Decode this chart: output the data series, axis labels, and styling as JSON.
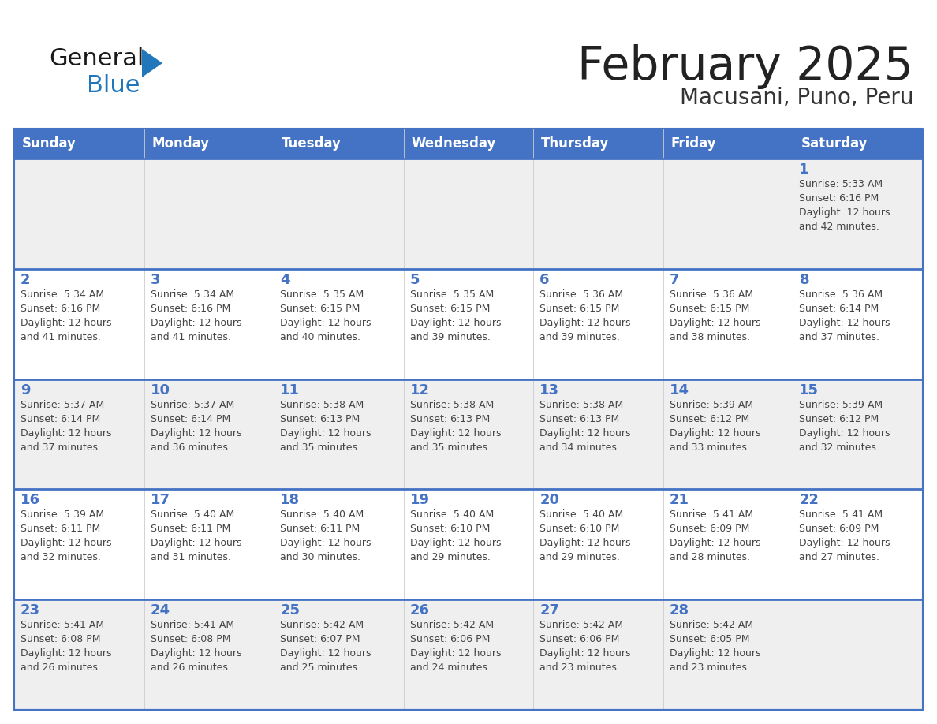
{
  "title": "February 2025",
  "subtitle": "Macusani, Puno, Peru",
  "header_bg": "#4472C4",
  "header_text_color": "#FFFFFF",
  "cell_bg_light": "#EFEFEF",
  "cell_bg_white": "#FFFFFF",
  "border_color": "#4472C4",
  "title_color": "#222222",
  "subtitle_color": "#333333",
  "day_number_color": "#4472C4",
  "info_text_color": "#444444",
  "days_of_week": [
    "Sunday",
    "Monday",
    "Tuesday",
    "Wednesday",
    "Thursday",
    "Friday",
    "Saturday"
  ],
  "logo_text1": "General",
  "logo_text2": "Blue",
  "logo_color1": "#1a1a1a",
  "logo_color2": "#2277BB",
  "logo_triangle_color": "#2277BB",
  "calendar_data": [
    [
      {
        "day": null,
        "info": ""
      },
      {
        "day": null,
        "info": ""
      },
      {
        "day": null,
        "info": ""
      },
      {
        "day": null,
        "info": ""
      },
      {
        "day": null,
        "info": ""
      },
      {
        "day": null,
        "info": ""
      },
      {
        "day": 1,
        "info": "Sunrise: 5:33 AM\nSunset: 6:16 PM\nDaylight: 12 hours\nand 42 minutes."
      }
    ],
    [
      {
        "day": 2,
        "info": "Sunrise: 5:34 AM\nSunset: 6:16 PM\nDaylight: 12 hours\nand 41 minutes."
      },
      {
        "day": 3,
        "info": "Sunrise: 5:34 AM\nSunset: 6:16 PM\nDaylight: 12 hours\nand 41 minutes."
      },
      {
        "day": 4,
        "info": "Sunrise: 5:35 AM\nSunset: 6:15 PM\nDaylight: 12 hours\nand 40 minutes."
      },
      {
        "day": 5,
        "info": "Sunrise: 5:35 AM\nSunset: 6:15 PM\nDaylight: 12 hours\nand 39 minutes."
      },
      {
        "day": 6,
        "info": "Sunrise: 5:36 AM\nSunset: 6:15 PM\nDaylight: 12 hours\nand 39 minutes."
      },
      {
        "day": 7,
        "info": "Sunrise: 5:36 AM\nSunset: 6:15 PM\nDaylight: 12 hours\nand 38 minutes."
      },
      {
        "day": 8,
        "info": "Sunrise: 5:36 AM\nSunset: 6:14 PM\nDaylight: 12 hours\nand 37 minutes."
      }
    ],
    [
      {
        "day": 9,
        "info": "Sunrise: 5:37 AM\nSunset: 6:14 PM\nDaylight: 12 hours\nand 37 minutes."
      },
      {
        "day": 10,
        "info": "Sunrise: 5:37 AM\nSunset: 6:14 PM\nDaylight: 12 hours\nand 36 minutes."
      },
      {
        "day": 11,
        "info": "Sunrise: 5:38 AM\nSunset: 6:13 PM\nDaylight: 12 hours\nand 35 minutes."
      },
      {
        "day": 12,
        "info": "Sunrise: 5:38 AM\nSunset: 6:13 PM\nDaylight: 12 hours\nand 35 minutes."
      },
      {
        "day": 13,
        "info": "Sunrise: 5:38 AM\nSunset: 6:13 PM\nDaylight: 12 hours\nand 34 minutes."
      },
      {
        "day": 14,
        "info": "Sunrise: 5:39 AM\nSunset: 6:12 PM\nDaylight: 12 hours\nand 33 minutes."
      },
      {
        "day": 15,
        "info": "Sunrise: 5:39 AM\nSunset: 6:12 PM\nDaylight: 12 hours\nand 32 minutes."
      }
    ],
    [
      {
        "day": 16,
        "info": "Sunrise: 5:39 AM\nSunset: 6:11 PM\nDaylight: 12 hours\nand 32 minutes."
      },
      {
        "day": 17,
        "info": "Sunrise: 5:40 AM\nSunset: 6:11 PM\nDaylight: 12 hours\nand 31 minutes."
      },
      {
        "day": 18,
        "info": "Sunrise: 5:40 AM\nSunset: 6:11 PM\nDaylight: 12 hours\nand 30 minutes."
      },
      {
        "day": 19,
        "info": "Sunrise: 5:40 AM\nSunset: 6:10 PM\nDaylight: 12 hours\nand 29 minutes."
      },
      {
        "day": 20,
        "info": "Sunrise: 5:40 AM\nSunset: 6:10 PM\nDaylight: 12 hours\nand 29 minutes."
      },
      {
        "day": 21,
        "info": "Sunrise: 5:41 AM\nSunset: 6:09 PM\nDaylight: 12 hours\nand 28 minutes."
      },
      {
        "day": 22,
        "info": "Sunrise: 5:41 AM\nSunset: 6:09 PM\nDaylight: 12 hours\nand 27 minutes."
      }
    ],
    [
      {
        "day": 23,
        "info": "Sunrise: 5:41 AM\nSunset: 6:08 PM\nDaylight: 12 hours\nand 26 minutes."
      },
      {
        "day": 24,
        "info": "Sunrise: 5:41 AM\nSunset: 6:08 PM\nDaylight: 12 hours\nand 26 minutes."
      },
      {
        "day": 25,
        "info": "Sunrise: 5:42 AM\nSunset: 6:07 PM\nDaylight: 12 hours\nand 25 minutes."
      },
      {
        "day": 26,
        "info": "Sunrise: 5:42 AM\nSunset: 6:06 PM\nDaylight: 12 hours\nand 24 minutes."
      },
      {
        "day": 27,
        "info": "Sunrise: 5:42 AM\nSunset: 6:06 PM\nDaylight: 12 hours\nand 23 minutes."
      },
      {
        "day": 28,
        "info": "Sunrise: 5:42 AM\nSunset: 6:05 PM\nDaylight: 12 hours\nand 23 minutes."
      },
      {
        "day": null,
        "info": ""
      }
    ]
  ]
}
